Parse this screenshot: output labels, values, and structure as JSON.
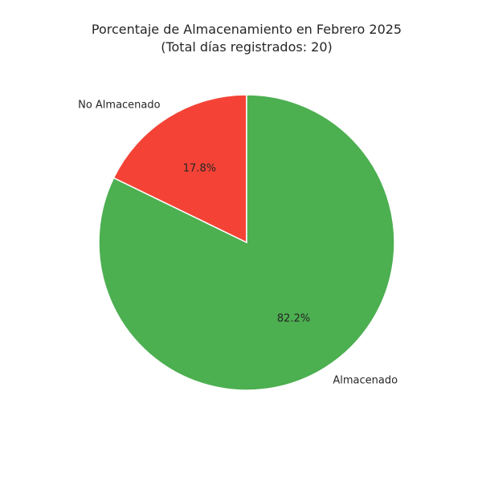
{
  "chart_data": {
    "type": "pie",
    "title": "Porcentaje de Almacenamiento en Febrero 2025",
    "subtitle": "(Total días registrados: 20)",
    "slices": [
      {
        "label": "No Almacenado",
        "value": 17.8,
        "pct_label": "17.8%",
        "color": "#f44336"
      },
      {
        "label": "Almacenado",
        "value": 82.2,
        "pct_label": "82.2%",
        "color": "#4caf50"
      }
    ],
    "start_angle": 90,
    "direction": "counterclockwise"
  }
}
